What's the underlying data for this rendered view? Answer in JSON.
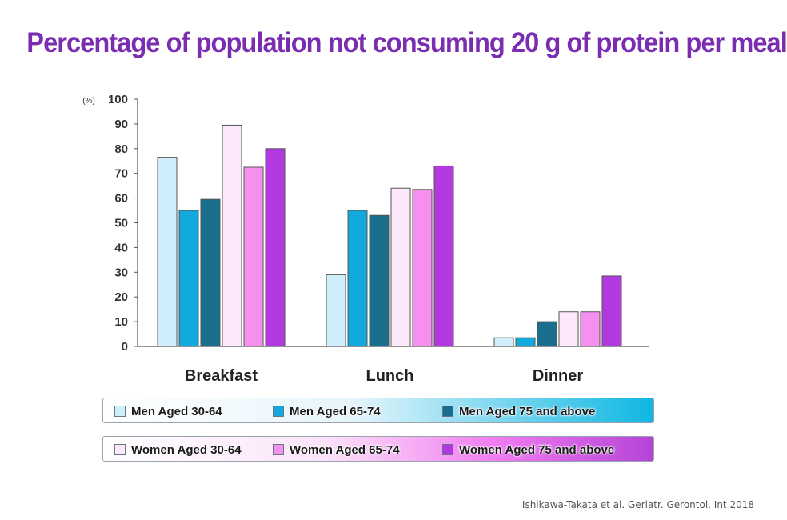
{
  "page": {
    "title": "Percentage of population not consuming 20 g of protein per meal",
    "source": "Ishikawa-Takata et al. Geriatr. Gerontol. Int 2018"
  },
  "chart_data": {
    "type": "bar",
    "title": "Percentage of population not consuming 20 g of protein per meal",
    "ylabel": "(%)",
    "xlabel": "",
    "ylim": [
      0,
      100
    ],
    "yticks": [
      0,
      10,
      20,
      30,
      40,
      50,
      60,
      70,
      80,
      90,
      100
    ],
    "grid": false,
    "categories": [
      "Breakfast",
      "Lunch",
      "Dinner"
    ],
    "series": [
      {
        "name": "Men Aged 30-64",
        "color": "#cdeefa",
        "values": [
          76.5,
          29,
          3.5
        ]
      },
      {
        "name": "Men Aged 65-74",
        "color": "#12aadd",
        "values": [
          55,
          55,
          3.5
        ]
      },
      {
        "name": "Men Aged 75 and above",
        "color": "#1b6f8e",
        "values": [
          59.5,
          53,
          10
        ]
      },
      {
        "name": "Women Aged 30-64",
        "color": "#fbe8fb",
        "values": [
          89.5,
          64,
          14
        ]
      },
      {
        "name": "Women Aged 65-74",
        "color": "#f590ef",
        "values": [
          72.5,
          63.5,
          14
        ]
      },
      {
        "name": "Women Aged 75 and above",
        "color": "#b238e0",
        "values": [
          80,
          73,
          28.5
        ]
      }
    ]
  }
}
